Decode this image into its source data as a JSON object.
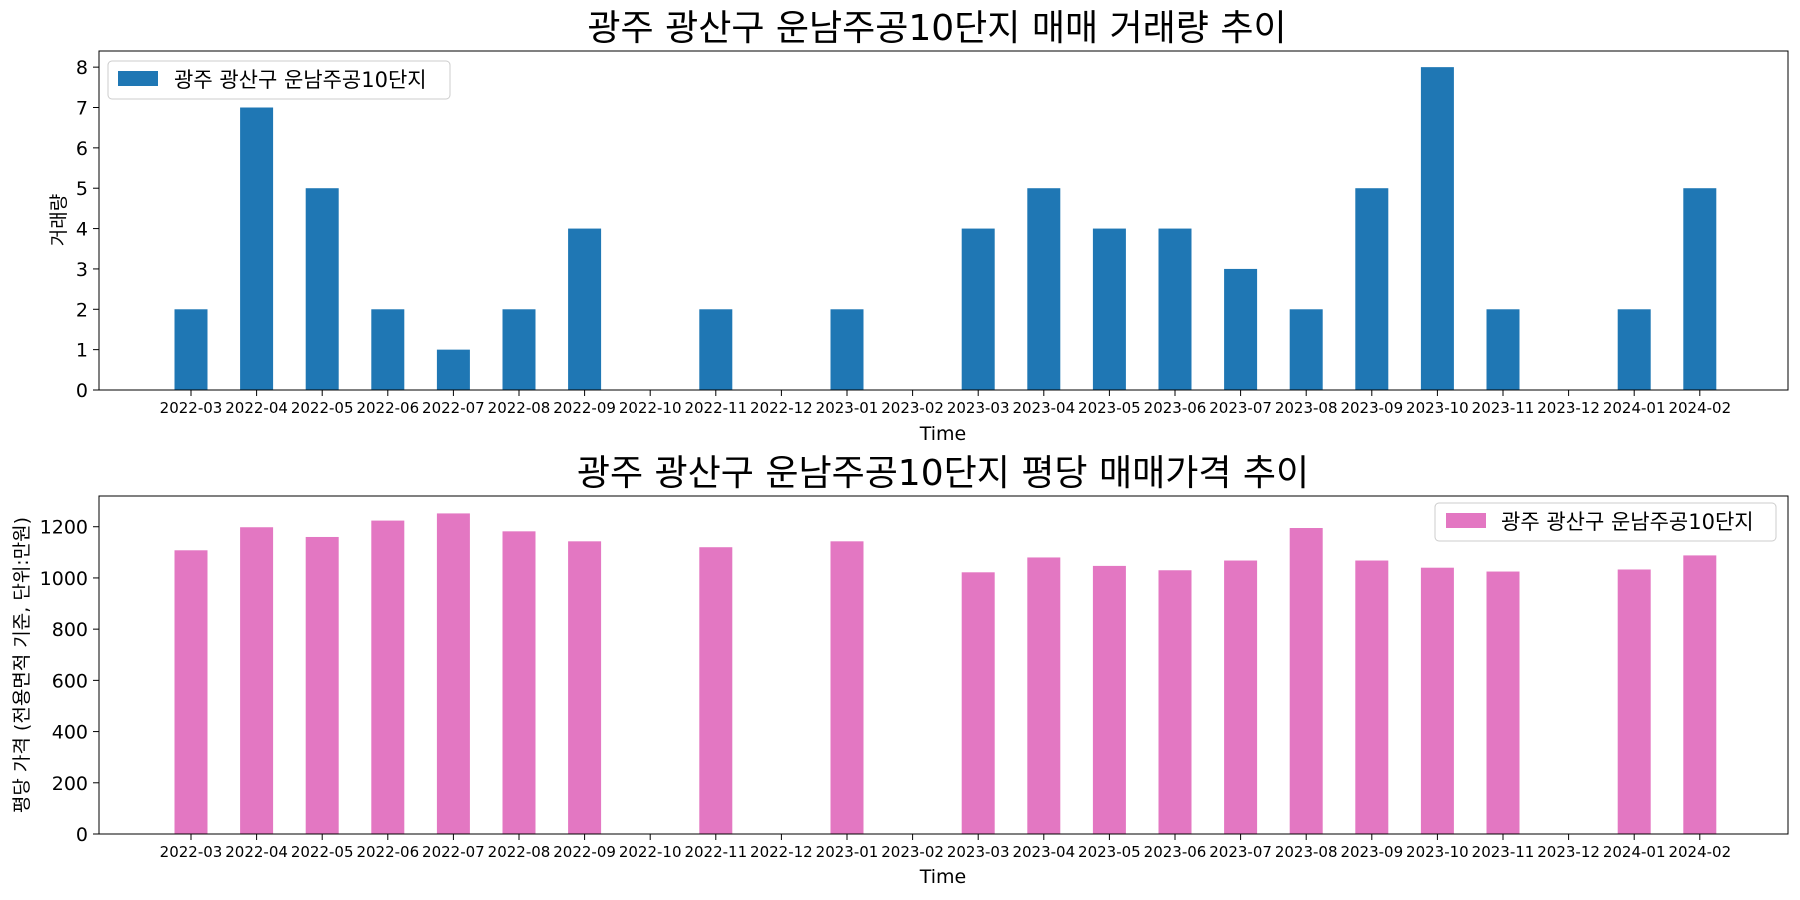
{
  "chart_data": [
    {
      "type": "bar",
      "title": "광주 광산구 운남주공10단지 매매 거래량 추이",
      "xlabel": "Time",
      "ylabel": "거래량",
      "ylim": [
        0,
        8.4
      ],
      "yticks": [
        0,
        1,
        2,
        3,
        4,
        5,
        6,
        7,
        8
      ],
      "legend": "top-left",
      "color": "#1f77b4",
      "categories": [
        "2022-03",
        "2022-04",
        "2022-05",
        "2022-06",
        "2022-07",
        "2022-08",
        "2022-09",
        "2022-10",
        "2022-11",
        "2022-12",
        "2023-01",
        "2023-02",
        "2023-03",
        "2023-04",
        "2023-05",
        "2023-06",
        "2023-07",
        "2023-08",
        "2023-09",
        "2023-10",
        "2023-11",
        "2023-12",
        "2024-01",
        "2024-02"
      ],
      "series": [
        {
          "name": "광주 광산구 운남주공10단지",
          "values": [
            2,
            7,
            5,
            2,
            1,
            2,
            4,
            0,
            2,
            0,
            2,
            0,
            4,
            5,
            4,
            4,
            3,
            2,
            5,
            8,
            2,
            0,
            2,
            5
          ]
        }
      ]
    },
    {
      "type": "bar",
      "title": "광주 광산구 운남주공10단지 평당 매매가격 추이",
      "xlabel": "Time",
      "ylabel": "평당 가격 (전용면적 기준, 단위:만원)",
      "ylim": [
        0,
        1320
      ],
      "yticks": [
        0,
        200,
        400,
        600,
        800,
        1000,
        1200
      ],
      "legend": "top-right",
      "color": "#e377c2",
      "categories": [
        "2022-03",
        "2022-04",
        "2022-05",
        "2022-06",
        "2022-07",
        "2022-08",
        "2022-09",
        "2022-10",
        "2022-11",
        "2022-12",
        "2023-01",
        "2023-02",
        "2023-03",
        "2023-04",
        "2023-05",
        "2023-06",
        "2023-07",
        "2023-08",
        "2023-09",
        "2023-10",
        "2023-11",
        "2023-12",
        "2024-01",
        "2024-02"
      ],
      "series": [
        {
          "name": "광주 광산구 운남주공10단지",
          "values": [
            1108,
            1198,
            1160,
            1224,
            1252,
            1182,
            1143,
            0,
            1120,
            0,
            1143,
            0,
            1022,
            1080,
            1047,
            1030,
            1068,
            1195,
            1068,
            1040,
            1025,
            0,
            1033,
            1088
          ]
        }
      ]
    }
  ]
}
